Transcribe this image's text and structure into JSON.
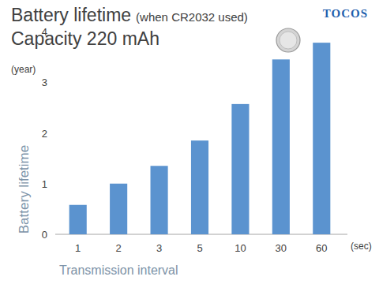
{
  "chart_data": {
    "type": "bar",
    "title": "Battery lifetime",
    "annotations": [
      "(when CR2032 used)"
    ],
    "subtitle": "Capacity 220 mAh",
    "logo": "TOCOS",
    "x_label": "Transmission interval",
    "x_unit": "(sec)",
    "y_label": "Battery lifetime",
    "y_unit": "(year)",
    "categories": [
      "1",
      "2",
      "3",
      "5",
      "10",
      "30",
      "60"
    ],
    "values": [
      0.58,
      1.0,
      1.35,
      1.85,
      2.57,
      3.45,
      3.78
    ],
    "color": "#5b93cf",
    "ylim": [
      0,
      4
    ],
    "yticks": [
      0,
      1,
      2,
      3,
      4
    ],
    "grid": false
  }
}
